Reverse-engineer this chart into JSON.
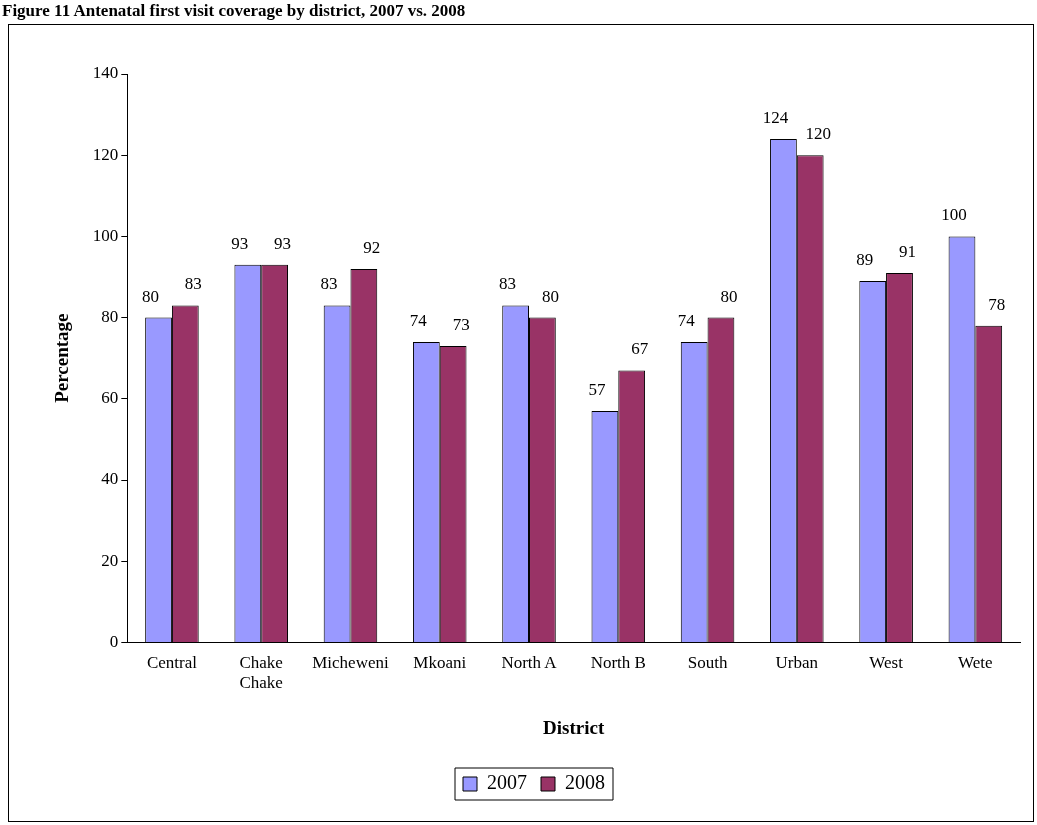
{
  "chart_data": {
    "type": "bar",
    "title": "Figure 11 Antenatal first visit coverage by district, 2007 vs. 2008",
    "xlabel": "District",
    "ylabel": "Percentage",
    "categories": [
      "Central",
      "Chake Chake",
      "Micheweni",
      "Mkoani",
      "North A",
      "North B",
      "South",
      "Urban",
      "West",
      "Wete"
    ],
    "series": [
      {
        "name": "2007",
        "color": "#9999ff",
        "values": [
          80,
          93,
          83,
          74,
          83,
          57,
          74,
          124,
          89,
          100
        ]
      },
      {
        "name": "2008",
        "color": "#993366",
        "values": [
          83,
          93,
          92,
          73,
          80,
          67,
          80,
          120,
          91,
          78
        ]
      }
    ],
    "ylim": [
      0,
      140
    ],
    "yticks": [
      0,
      20,
      40,
      60,
      80,
      100,
      120,
      140
    ],
    "data_labels": true,
    "legend": "bottom",
    "grid": false
  }
}
